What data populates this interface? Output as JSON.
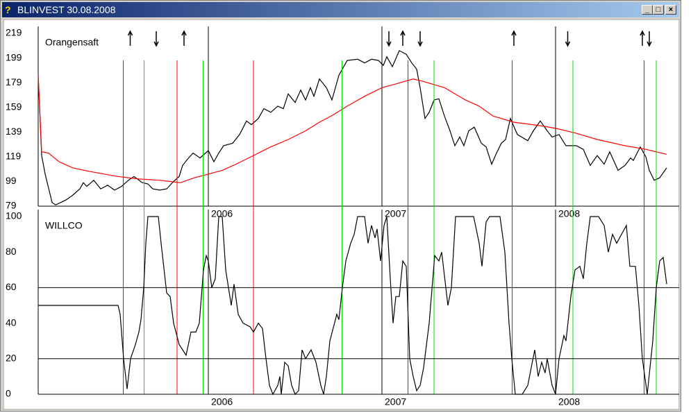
{
  "window": {
    "title": "BLINVEST  30.08.2008"
  },
  "chart_data": [
    {
      "type": "line",
      "title": "Orangensaft",
      "xlim": [
        2005.02,
        2008.7
      ],
      "xticks": [
        2006,
        2007,
        2008
      ],
      "ylim": [
        79,
        219
      ],
      "yticks": [
        79,
        99,
        119,
        139,
        159,
        179,
        199,
        219
      ],
      "series": [
        {
          "color": "#000000",
          "x": [
            2005.02,
            2005.04,
            2005.06,
            2005.1,
            2005.12,
            2005.18,
            2005.22,
            2005.26,
            2005.28,
            2005.3,
            2005.34,
            2005.38,
            2005.42,
            2005.46,
            2005.5,
            2005.54,
            2005.572,
            2005.62,
            2005.652,
            2005.68,
            2005.72,
            2005.76,
            2005.8,
            2005.832,
            2005.852,
            2005.88,
            2005.912,
            2005.952,
            2006.0,
            2006.032,
            2006.06,
            2006.088,
            2006.14,
            2006.18,
            2006.22,
            2006.248,
            2006.288,
            2006.32,
            2006.36,
            2006.4,
            2006.432,
            2006.46,
            2006.5,
            2006.532,
            2006.56,
            2006.588,
            2006.608,
            2006.64,
            2006.68,
            2006.712,
            2006.752,
            2006.8,
            2006.86,
            2006.9,
            2006.94,
            2006.98,
            2007.008,
            2007.028,
            2007.06,
            2007.1,
            2007.14,
            2007.172,
            2007.2,
            2007.22,
            2007.248,
            2007.272,
            2007.3,
            2007.328,
            2007.36,
            2007.392,
            2007.42,
            2007.448,
            2007.472,
            2007.5,
            2007.532,
            2007.572,
            2007.6,
            2007.632,
            2007.66,
            2007.688,
            2007.712,
            2007.74,
            2007.78,
            2007.84,
            2007.872,
            2007.912,
            2007.952,
            2007.98,
            2008.02,
            2008.06,
            2008.12,
            2008.16,
            2008.2,
            2008.24,
            2008.28,
            2008.312,
            2008.36,
            2008.4,
            2008.432,
            2008.448,
            2008.488,
            2008.52,
            2008.54,
            2008.568,
            2008.6,
            2008.64
          ],
          "values": [
            185,
            120,
            105,
            82,
            80,
            84,
            88,
            93,
            98,
            95,
            100,
            93,
            96,
            92,
            95,
            100,
            103,
            98,
            97,
            93,
            92,
            93,
            99,
            103,
            112,
            117,
            122,
            118,
            124,
            115,
            122,
            128,
            130,
            137,
            148,
            145,
            150,
            158,
            155,
            160,
            158,
            170,
            163,
            173,
            165,
            175,
            168,
            182,
            175,
            165,
            185,
            197,
            198,
            195,
            198,
            197,
            193,
            200,
            192,
            205,
            202,
            195,
            190,
            175,
            150,
            155,
            165,
            166,
            152,
            140,
            128,
            135,
            128,
            140,
            143,
            130,
            127,
            113,
            122,
            130,
            133,
            150,
            137,
            132,
            140,
            148,
            140,
            135,
            137,
            128,
            128,
            125,
            112,
            120,
            113,
            123,
            108,
            112,
            118,
            116,
            127,
            119,
            108,
            100,
            102,
            110
          ]
        },
        {
          "color": "#ff0000",
          "x": [
            2005.02,
            2005.04,
            2005.08,
            2005.14,
            2005.22,
            2005.32,
            2005.48,
            2005.6,
            2005.72,
            2005.84,
            2005.92,
            2006.0,
            2006.08,
            2006.16,
            2006.26,
            2006.36,
            2006.46,
            2006.56,
            2006.64,
            2006.72,
            2006.8,
            2006.9,
            2007.0,
            2007.08,
            2007.18,
            2007.24,
            2007.36,
            2007.48,
            2007.56,
            2007.64,
            2007.76,
            2007.92,
            2008.0,
            2008.12,
            2008.24,
            2008.4,
            2008.52,
            2008.64
          ],
          "values": [
            185,
            123,
            122,
            115,
            110,
            107,
            103,
            101,
            100,
            98,
            102,
            105,
            108,
            113,
            120,
            127,
            133,
            140,
            147,
            153,
            160,
            168,
            175,
            178,
            182,
            180,
            175,
            165,
            160,
            152,
            147,
            144,
            142,
            138,
            133,
            128,
            125,
            121
          ]
        }
      ],
      "signals": {
        "red": [
          2005.51,
          2005.82,
          2006.26,
          2007.15,
          2007.75,
          2008.51
        ],
        "green": [
          2005.63,
          2005.97,
          2006.77,
          2007.3,
          2008.1,
          2008.58
        ],
        "up": [
          2005.55,
          2005.86,
          2007.12,
          2007.76,
          2008.5
        ],
        "down": [
          2005.7,
          2007.04,
          2007.22,
          2008.07,
          2008.54
        ]
      }
    },
    {
      "type": "line",
      "title": "WILLCO",
      "xlim": [
        2005.02,
        2008.7
      ],
      "xticks": [
        2006,
        2007,
        2008
      ],
      "ylim": [
        0,
        100
      ],
      "yticks": [
        0,
        20,
        40,
        60,
        80,
        100
      ],
      "hlines": [
        20,
        60
      ],
      "series": [
        {
          "color": "#000000",
          "x": [
            2005.02,
            2005.48,
            2005.492,
            2005.512,
            2005.532,
            2005.552,
            2005.58,
            2005.6,
            2005.612,
            2005.628,
            2005.64,
            2005.652,
            2005.712,
            2005.728,
            2005.76,
            2005.78,
            2005.8,
            2005.832,
            2005.852,
            2005.872,
            2005.9,
            2005.928,
            2005.948,
            2005.972,
            2005.988,
            2006.0,
            2006.02,
            2006.04,
            2006.06,
            2006.08,
            2006.1,
            2006.132,
            2006.148,
            2006.172,
            2006.2,
            2006.24,
            2006.26,
            2006.288,
            2006.312,
            2006.332,
            2006.352,
            2006.372,
            2006.4,
            2006.412,
            2006.42,
            2006.44,
            2006.46,
            2006.48,
            2006.5,
            2006.52,
            2006.54,
            2006.56,
            2006.592,
            2006.62,
            2006.648,
            2006.664,
            2006.68,
            2006.7,
            2006.74,
            2006.752,
            2006.772,
            2006.792,
            2006.82,
            2006.84,
            2006.86,
            2006.9,
            2006.92,
            2006.94,
            2006.96,
            2006.972,
            2006.992,
            2007.012,
            2007.028,
            2007.048,
            2007.064,
            2007.08,
            2007.1,
            2007.12,
            2007.14,
            2007.16,
            2007.18,
            2007.2,
            2007.22,
            2007.24,
            2007.272,
            2007.304,
            2007.328,
            2007.344,
            2007.38,
            2007.4,
            2007.424,
            2007.528,
            2007.56,
            2007.576,
            2007.6,
            2007.62,
            2007.68,
            2007.708,
            2007.732,
            2007.748,
            2007.768,
            2007.808,
            2007.84,
            2007.86,
            2007.88,
            2007.9,
            2007.92,
            2007.94,
            2007.952,
            2007.98,
            2008.0,
            2008.02,
            2008.048,
            2008.06,
            2008.088,
            2008.112,
            2008.14,
            2008.16,
            2008.18,
            2008.2,
            2008.248,
            2008.28,
            2008.304,
            2008.328,
            2008.352,
            2008.38,
            2008.408,
            2008.428,
            2008.46,
            2008.48,
            2008.5,
            2008.528,
            2008.56,
            2008.58,
            2008.6,
            2008.62,
            2008.64
          ],
          "values": [
            50,
            50,
            45,
            20,
            3,
            20,
            28,
            35,
            42,
            60,
            85,
            100,
            100,
            85,
            57,
            55,
            40,
            28,
            25,
            22,
            35,
            35,
            40,
            70,
            78,
            75,
            60,
            65,
            100,
            100,
            70,
            50,
            62,
            45,
            40,
            38,
            35,
            40,
            37,
            20,
            5,
            0,
            5,
            10,
            0,
            18,
            16,
            5,
            0,
            2,
            25,
            20,
            25,
            18,
            5,
            0,
            10,
            30,
            45,
            42,
            60,
            75,
            85,
            90,
            100,
            100,
            85,
            95,
            88,
            93,
            75,
            95,
            100,
            65,
            40,
            55,
            55,
            75,
            72,
            20,
            10,
            2,
            5,
            15,
            40,
            78,
            75,
            80,
            50,
            60,
            100,
            100,
            85,
            72,
            97,
            100,
            100,
            80,
            40,
            20,
            0,
            0,
            5,
            15,
            25,
            10,
            18,
            12,
            20,
            5,
            0,
            20,
            33,
            30,
            55,
            70,
            72,
            65,
            85,
            100,
            100,
            95,
            80,
            90,
            85,
            90,
            95,
            72,
            72,
            50,
            20,
            0,
            30,
            60,
            75,
            77,
            62
          ]
        }
      ]
    }
  ]
}
